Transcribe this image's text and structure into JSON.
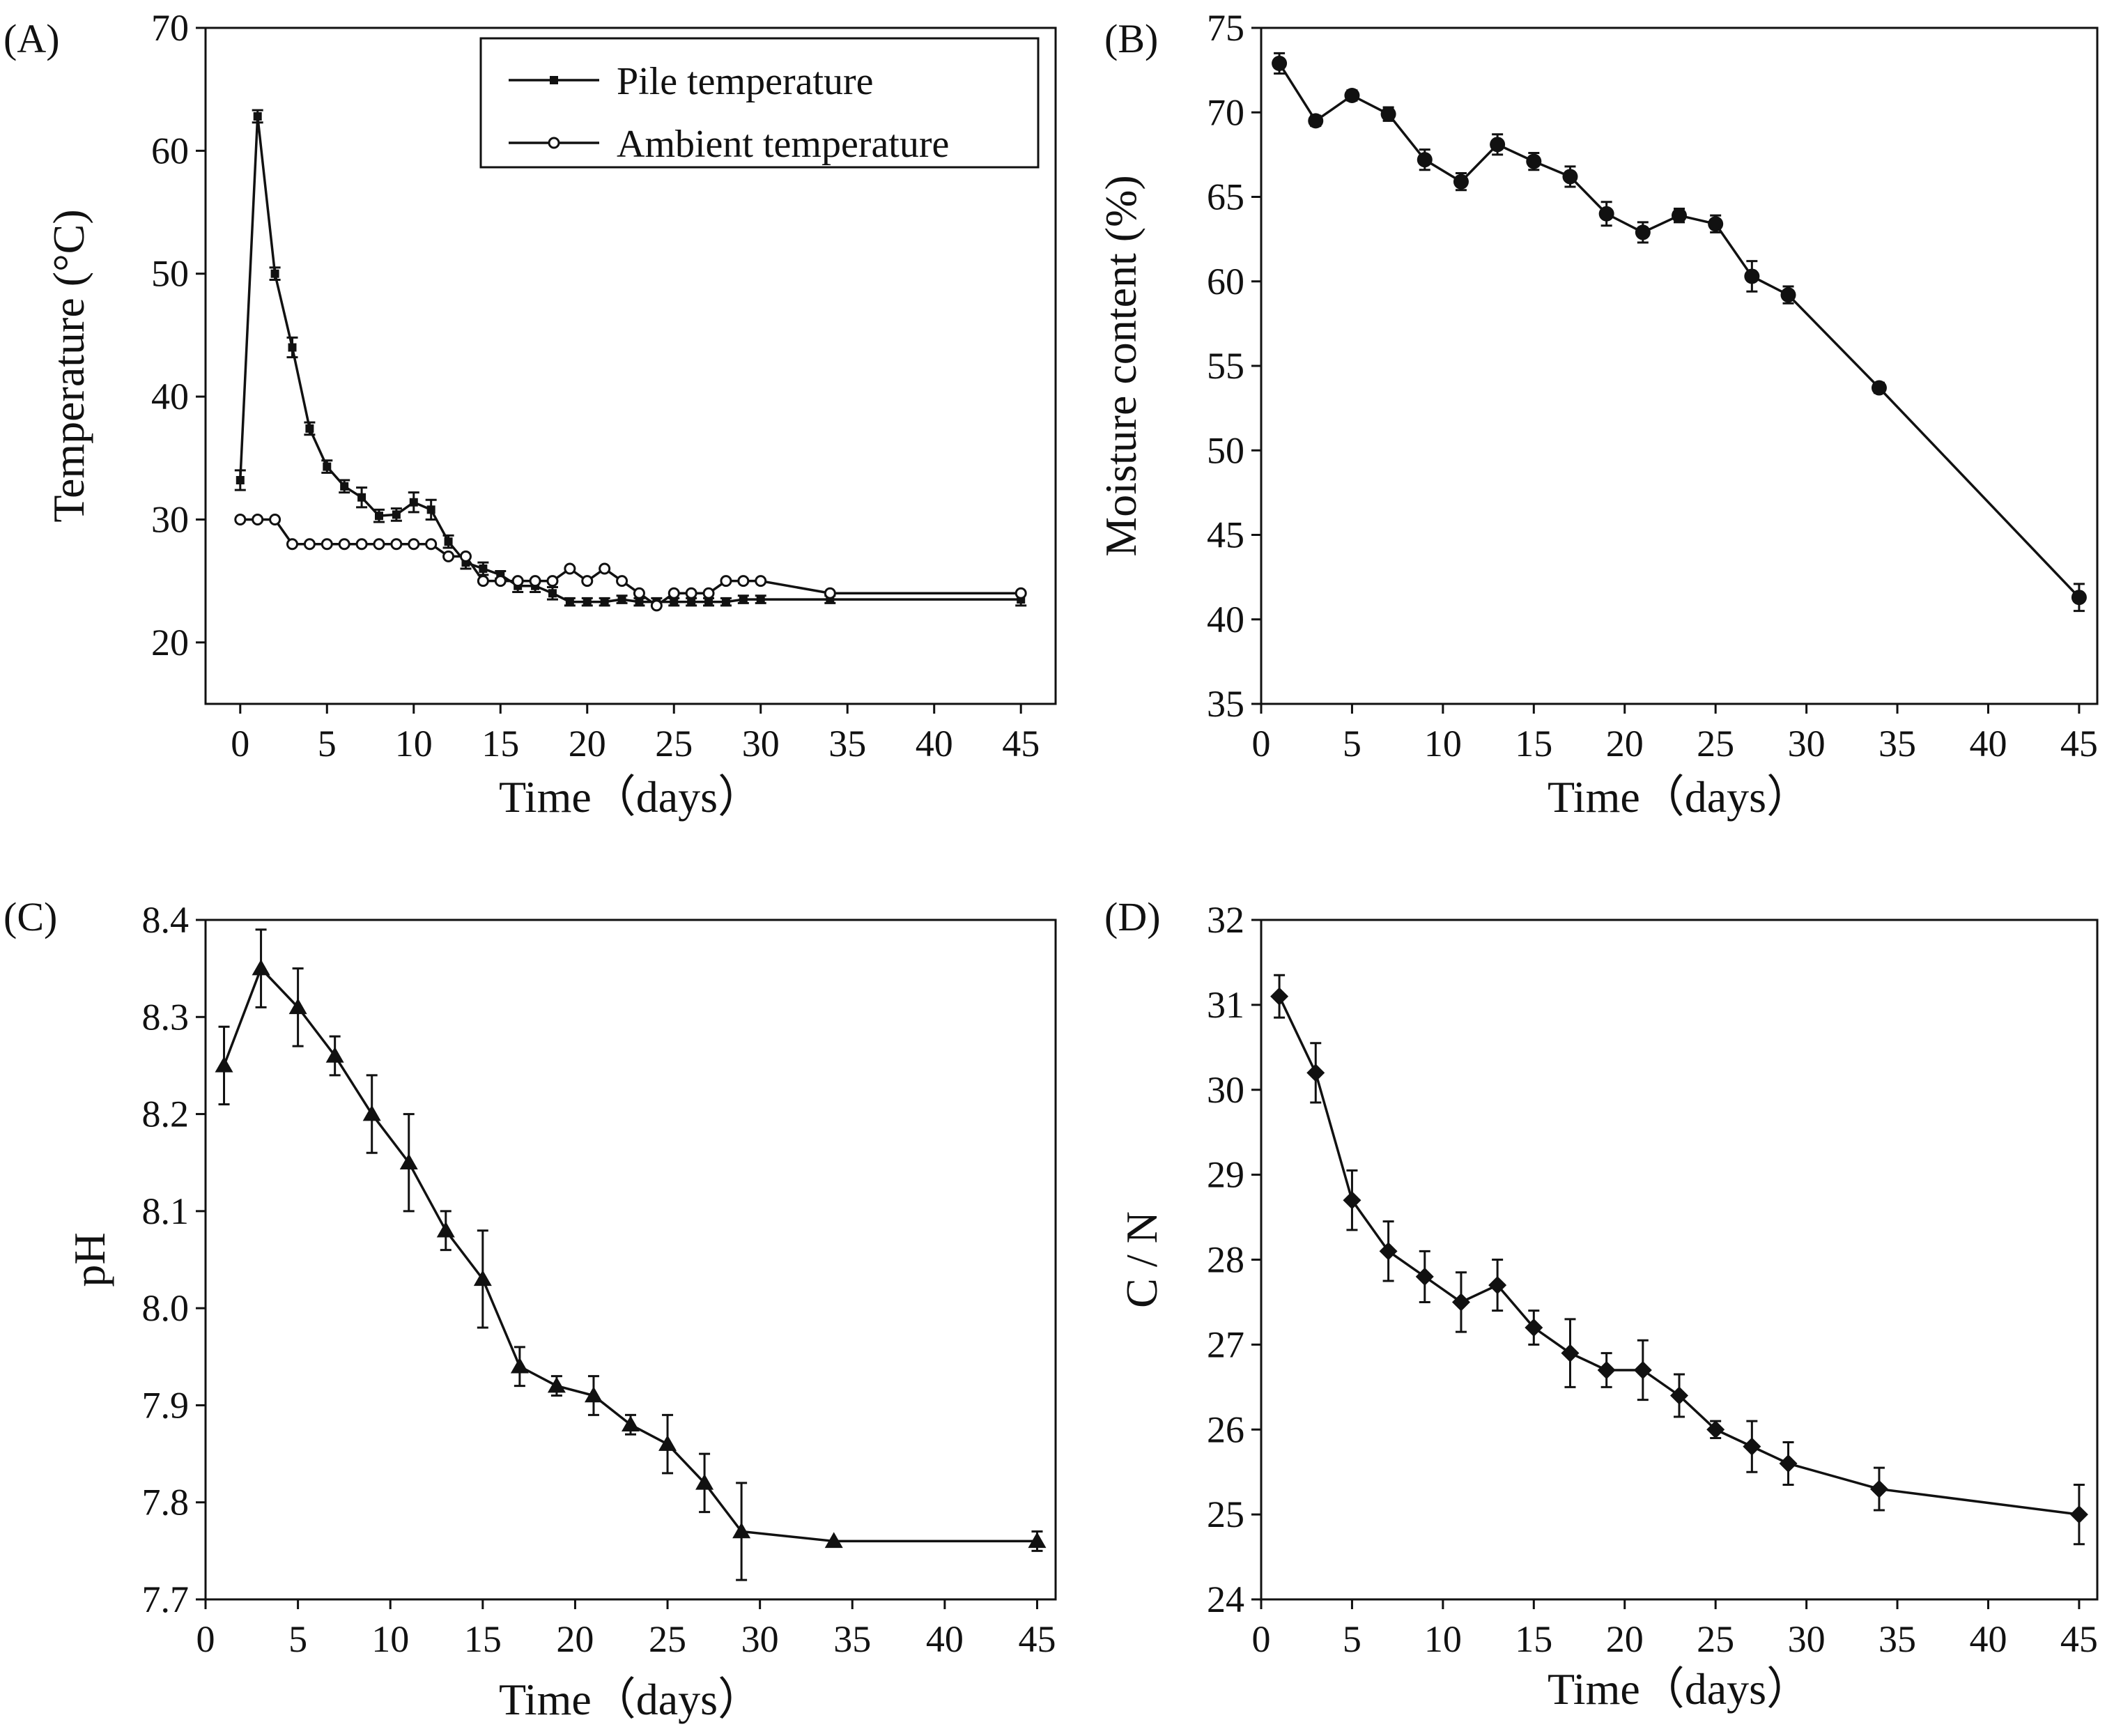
{
  "chart_data": [
    {
      "type": "line",
      "panel_label": "(A)",
      "xlabel": "Time（days）",
      "ylabel": "Temperature (°C)",
      "xlim": [
        -2,
        47
      ],
      "ylim": [
        15,
        70
      ],
      "xticks": [
        0,
        5,
        10,
        15,
        20,
        25,
        30,
        35,
        40,
        45
      ],
      "yticks": [
        20,
        30,
        40,
        50,
        60,
        70
      ],
      "legend_position": "top-right",
      "series": [
        {
          "name": "Pile temperature",
          "marker": "filled-square",
          "x": [
            0,
            1,
            2,
            3,
            4,
            5,
            6,
            7,
            8,
            9,
            10,
            11,
            12,
            13,
            14,
            15,
            16,
            17,
            18,
            19,
            20,
            21,
            22,
            23,
            24,
            25,
            26,
            27,
            28,
            29,
            30,
            34,
            45
          ],
          "y": [
            33.2,
            62.8,
            50.0,
            44.0,
            37.4,
            34.3,
            32.7,
            31.8,
            30.3,
            30.4,
            31.4,
            30.8,
            28.2,
            26.5,
            26.0,
            25.5,
            24.6,
            24.6,
            24.0,
            23.3,
            23.3,
            23.3,
            23.5,
            23.3,
            23.3,
            23.3,
            23.3,
            23.3,
            23.3,
            23.5,
            23.5,
            23.5,
            23.5
          ],
          "err": [
            0.8,
            0.5,
            0.5,
            0.8,
            0.5,
            0.5,
            0.5,
            0.8,
            0.5,
            0.5,
            0.8,
            0.8,
            0.5,
            0.5,
            0.5,
            0.3,
            0.5,
            0.5,
            0.5,
            0.3,
            0.3,
            0.3,
            0.3,
            0.3,
            0.3,
            0.3,
            0.3,
            0.3,
            0.3,
            0.3,
            0.3,
            0.3,
            0.5
          ]
        },
        {
          "name": "Ambient temperature",
          "marker": "open-circle",
          "x": [
            0,
            1,
            2,
            3,
            4,
            5,
            6,
            7,
            8,
            9,
            10,
            11,
            12,
            13,
            14,
            15,
            16,
            17,
            18,
            19,
            20,
            21,
            22,
            23,
            24,
            25,
            26,
            27,
            28,
            29,
            30,
            34,
            45
          ],
          "y": [
            30,
            30,
            30,
            28,
            28,
            28,
            28,
            28,
            28,
            28,
            28,
            28,
            27,
            27,
            25,
            25,
            25,
            25,
            25,
            26,
            25,
            26,
            25,
            24,
            23,
            24,
            24,
            24,
            25,
            25,
            25,
            24,
            24
          ],
          "err": []
        }
      ]
    },
    {
      "type": "line",
      "panel_label": "(B)",
      "xlabel": "Time（days）",
      "ylabel": "Moisture content (%)",
      "xlim": [
        0,
        46
      ],
      "ylim": [
        35,
        75
      ],
      "xticks": [
        0,
        5,
        10,
        15,
        20,
        25,
        30,
        35,
        40,
        45
      ],
      "yticks": [
        35,
        40,
        45,
        50,
        55,
        60,
        65,
        70,
        75
      ],
      "series": [
        {
          "marker": "filled-circle",
          "x": [
            1,
            3,
            5,
            7,
            9,
            11,
            13,
            15,
            17,
            19,
            21,
            23,
            25,
            27,
            29,
            34,
            45
          ],
          "y": [
            72.9,
            69.5,
            71.0,
            69.9,
            67.2,
            65.9,
            68.1,
            67.1,
            66.2,
            64.0,
            62.9,
            63.9,
            63.4,
            60.3,
            59.2,
            53.7,
            41.3
          ],
          "err": [
            0.6,
            0.3,
            0.3,
            0.4,
            0.6,
            0.5,
            0.6,
            0.5,
            0.6,
            0.7,
            0.6,
            0.4,
            0.5,
            0.9,
            0.5,
            0.3,
            0.8
          ]
        }
      ]
    },
    {
      "type": "line",
      "panel_label": "(C)",
      "xlabel": "Time（days）",
      "ylabel": "pH",
      "xlim": [
        0,
        46
      ],
      "ylim": [
        7.7,
        8.4
      ],
      "xticks": [
        0,
        5,
        10,
        15,
        20,
        25,
        30,
        35,
        40,
        45
      ],
      "yticks": [
        7.7,
        7.8,
        7.9,
        8.0,
        8.1,
        8.2,
        8.3,
        8.4
      ],
      "tick_labels_y": [
        "7.7",
        "7.8",
        "7.9",
        "8.0",
        "8.1",
        "8.2",
        "8.3",
        "8.4"
      ],
      "series": [
        {
          "marker": "filled-triangle",
          "x": [
            1,
            3,
            5,
            7,
            9,
            11,
            13,
            15,
            17,
            19,
            21,
            23,
            25,
            27,
            29,
            34,
            45
          ],
          "y": [
            8.25,
            8.35,
            8.31,
            8.26,
            8.2,
            8.15,
            8.08,
            8.03,
            7.94,
            7.92,
            7.91,
            7.88,
            7.86,
            7.82,
            7.77,
            7.76,
            7.76
          ],
          "err": [
            0.04,
            0.04,
            0.04,
            0.02,
            0.04,
            0.05,
            0.02,
            0.05,
            0.02,
            0.01,
            0.02,
            0.01,
            0.03,
            0.03,
            0.05,
            0.0,
            0.01
          ]
        }
      ]
    },
    {
      "type": "line",
      "panel_label": "(D)",
      "xlabel": "Time（days）",
      "ylabel": "C / N",
      "xlim": [
        0,
        46
      ],
      "ylim": [
        24,
        32
      ],
      "xticks": [
        0,
        5,
        10,
        15,
        20,
        25,
        30,
        35,
        40,
        45
      ],
      "yticks": [
        24,
        25,
        26,
        27,
        28,
        29,
        30,
        31,
        32
      ],
      "series": [
        {
          "marker": "filled-diamond",
          "x": [
            1,
            3,
            5,
            7,
            9,
            11,
            13,
            15,
            17,
            19,
            21,
            23,
            25,
            27,
            29,
            34,
            45
          ],
          "y": [
            31.1,
            30.2,
            28.7,
            28.1,
            27.8,
            27.5,
            27.7,
            27.2,
            26.9,
            26.7,
            26.7,
            26.4,
            26.0,
            25.8,
            25.6,
            25.3,
            25.0
          ],
          "err": [
            0.25,
            0.35,
            0.35,
            0.35,
            0.3,
            0.35,
            0.3,
            0.2,
            0.4,
            0.2,
            0.35,
            0.25,
            0.1,
            0.3,
            0.25,
            0.25,
            0.35
          ]
        }
      ]
    }
  ]
}
